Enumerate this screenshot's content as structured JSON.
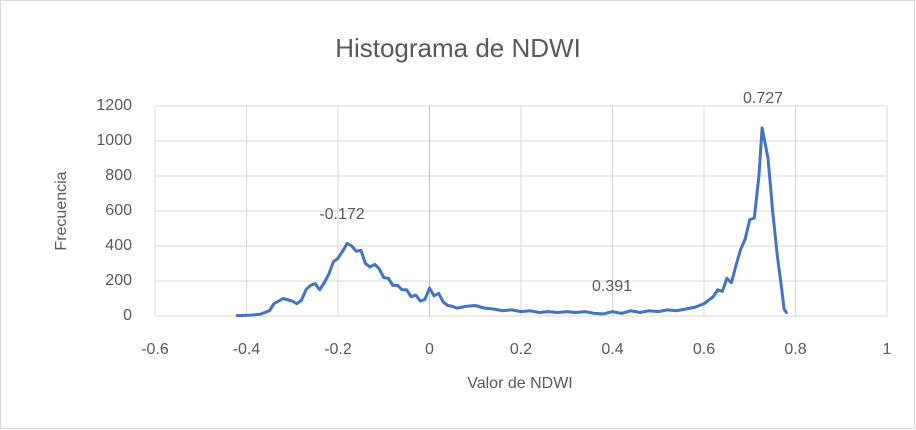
{
  "chart_data": {
    "type": "line",
    "title": "Histograma de NDWI",
    "x_label": "Valor de NDWI",
    "y_label": "Frecuencia",
    "annotations": [
      "-0.172",
      "0.391",
      "0.727"
    ],
    "xlim": [
      -0.6,
      1
    ],
    "xticks": [
      -0.6,
      -0.4,
      -0.2,
      0,
      0.2,
      0.4,
      0.6,
      0.8,
      1
    ],
    "ylim": [
      0,
      1200
    ],
    "yticks": [
      0,
      200,
      400,
      600,
      800,
      1000,
      1200
    ],
    "grid": true,
    "series": [
      {
        "name": "Frecuencia",
        "color": "#4472c4",
        "x": [
          -0.42,
          -0.41,
          -0.39,
          -0.37,
          -0.35,
          -0.34,
          -0.32,
          -0.3,
          -0.29,
          -0.28,
          -0.27,
          -0.26,
          -0.25,
          -0.24,
          -0.23,
          -0.22,
          -0.21,
          -0.2,
          -0.19,
          -0.18,
          -0.17,
          -0.16,
          -0.15,
          -0.14,
          -0.13,
          -0.12,
          -0.11,
          -0.1,
          -0.09,
          -0.08,
          -0.07,
          -0.06,
          -0.05,
          -0.04,
          -0.03,
          -0.02,
          -0.01,
          0,
          0.01,
          0.02,
          0.03,
          0.04,
          0.05,
          0.06,
          0.08,
          0.1,
          0.12,
          0.14,
          0.16,
          0.18,
          0.2,
          0.22,
          0.24,
          0.26,
          0.28,
          0.3,
          0.32,
          0.34,
          0.36,
          0.38,
          0.4,
          0.42,
          0.44,
          0.46,
          0.48,
          0.5,
          0.52,
          0.54,
          0.56,
          0.58,
          0.6,
          0.62,
          0.63,
          0.64,
          0.65,
          0.66,
          0.67,
          0.68,
          0.69,
          0.7,
          0.71,
          0.72,
          0.727,
          0.74,
          0.75,
          0.76,
          0.77,
          0.775,
          0.78
        ],
        "values": [
          2,
          3,
          5,
          10,
          30,
          70,
          100,
          85,
          70,
          90,
          150,
          175,
          185,
          150,
          190,
          240,
          310,
          330,
          370,
          415,
          400,
          370,
          375,
          300,
          280,
          295,
          270,
          220,
          215,
          175,
          175,
          150,
          150,
          110,
          120,
          85,
          95,
          160,
          115,
          130,
          80,
          60,
          55,
          45,
          55,
          60,
          45,
          40,
          30,
          35,
          25,
          30,
          20,
          25,
          20,
          25,
          20,
          25,
          15,
          12,
          25,
          15,
          30,
          20,
          30,
          25,
          35,
          30,
          40,
          50,
          70,
          110,
          150,
          140,
          215,
          190,
          290,
          380,
          440,
          550,
          560,
          800,
          1075,
          900,
          600,
          350,
          150,
          40,
          20
        ]
      }
    ]
  }
}
